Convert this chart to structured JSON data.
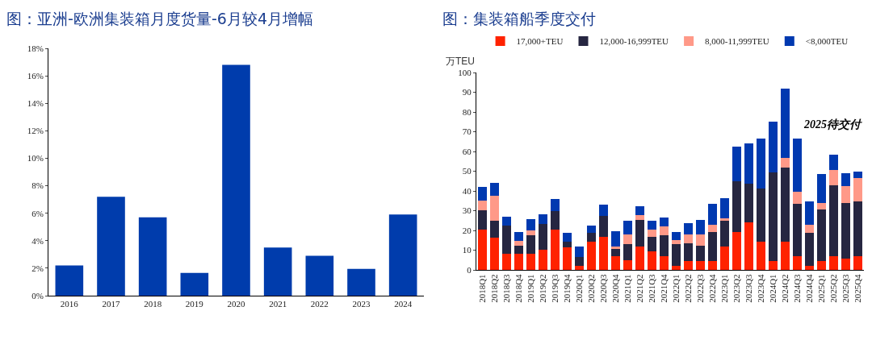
{
  "chart_data": [
    {
      "type": "bar",
      "title": "图：亚洲-欧洲集装箱月度货量-6月较4月增幅",
      "categories": [
        "2016",
        "2017",
        "2018",
        "2019",
        "2020",
        "2021",
        "2022",
        "2023",
        "2024"
      ],
      "values": [
        2.2,
        7.2,
        5.7,
        1.65,
        16.8,
        3.5,
        2.9,
        1.95,
        5.9
      ],
      "color": "#003cac",
      "ylim": [
        0,
        18
      ],
      "yticks": [
        {
          "value": 0,
          "label": "0%"
        },
        {
          "value": 2,
          "label": "2%"
        },
        {
          "value": 4,
          "label": "4%"
        },
        {
          "value": 6,
          "label": "6%"
        },
        {
          "value": 8,
          "label": "8%"
        },
        {
          "value": 10,
          "label": "10%"
        },
        {
          "value": 12,
          "label": "12%"
        },
        {
          "value": 14,
          "label": "14%"
        },
        {
          "value": 16,
          "label": "16%"
        },
        {
          "value": 18,
          "label": "18%"
        }
      ],
      "grid": false,
      "legend": false
    },
    {
      "type": "bar",
      "title": "图：集装箱船季度交付",
      "ylabel": "万TEU",
      "stacked": true,
      "legend": "top",
      "categories": [
        "2018Q1",
        "2018Q2",
        "2018Q3",
        "2018Q4",
        "2019Q1",
        "2019Q2",
        "2019Q3",
        "2019Q4",
        "2020Q1",
        "2020Q2",
        "2020Q3",
        "2020Q4",
        "2021Q1",
        "2021Q2",
        "2021Q3",
        "2021Q4",
        "2022Q1",
        "2022Q2",
        "2022Q3",
        "2022Q4",
        "2023Q1",
        "2023Q2",
        "2023Q3",
        "2023Q4",
        "2024Q1",
        "2024Q2",
        "2024Q3",
        "2024Q4",
        "2025Q1",
        "2025Q2",
        "2025Q3",
        "2025Q4"
      ],
      "series": [
        {
          "name": "17,000+TEU",
          "color": "#ff2200",
          "values": [
            20.3,
            16.2,
            8,
            8,
            8,
            10.2,
            20.3,
            11.3,
            2.2,
            14.4,
            16.8,
            6.8,
            4.7,
            11.7,
            9.5,
            7,
            2.2,
            4.6,
            4.6,
            4.6,
            11.8,
            19,
            23.9,
            14.2,
            4.6,
            14.2,
            6.9,
            2.2,
            4.6,
            7.1,
            5.7,
            7.1
          ]
        },
        {
          "name": "12,000-16,999TEU",
          "color": "#262641",
          "values": [
            10,
            8.6,
            14.3,
            4.2,
            9.7,
            13.1,
            9.7,
            3,
            4.3,
            4.3,
            10.5,
            3.9,
            8.5,
            13.6,
            7.3,
            10.4,
            10.8,
            8.7,
            7.6,
            14.4,
            13,
            25.8,
            19.7,
            27.2,
            44.9,
            37.8,
            26.5,
            16.5,
            26.1,
            35.8,
            28.2,
            27.8
          ]
        },
        {
          "name": "8,000-11,999TEU",
          "color": "#ff9988",
          "values": [
            4.7,
            12.7,
            0,
            2.5,
            2.4,
            0,
            0,
            0,
            0,
            0,
            0,
            1.3,
            4.8,
            2.4,
            3.5,
            4.6,
            2.2,
            4.6,
            5.7,
            3.7,
            1.2,
            0,
            0,
            0,
            0,
            4.9,
            6.1,
            4,
            3.2,
            7.6,
            8.7,
            11.8
          ]
        },
        {
          "name": "<8,000TEU",
          "color": "#0039b0",
          "values": [
            7,
            6.5,
            4.7,
            4.3,
            5.5,
            5,
            5.8,
            4.4,
            5.5,
            3.9,
            5.9,
            7.5,
            6.7,
            4.7,
            4.7,
            4.7,
            3.8,
            5.7,
            7.6,
            10.9,
            10.4,
            17.6,
            20.4,
            25.2,
            25.7,
            34.8,
            27.1,
            12.2,
            14.8,
            8,
            6.5,
            3.2
          ]
        }
      ],
      "ylim": [
        0,
        100
      ],
      "yticks": [
        0,
        10,
        20,
        30,
        40,
        50,
        60,
        70,
        80,
        90,
        100
      ],
      "grid": false,
      "annotations": [
        "2025待交付"
      ]
    }
  ]
}
